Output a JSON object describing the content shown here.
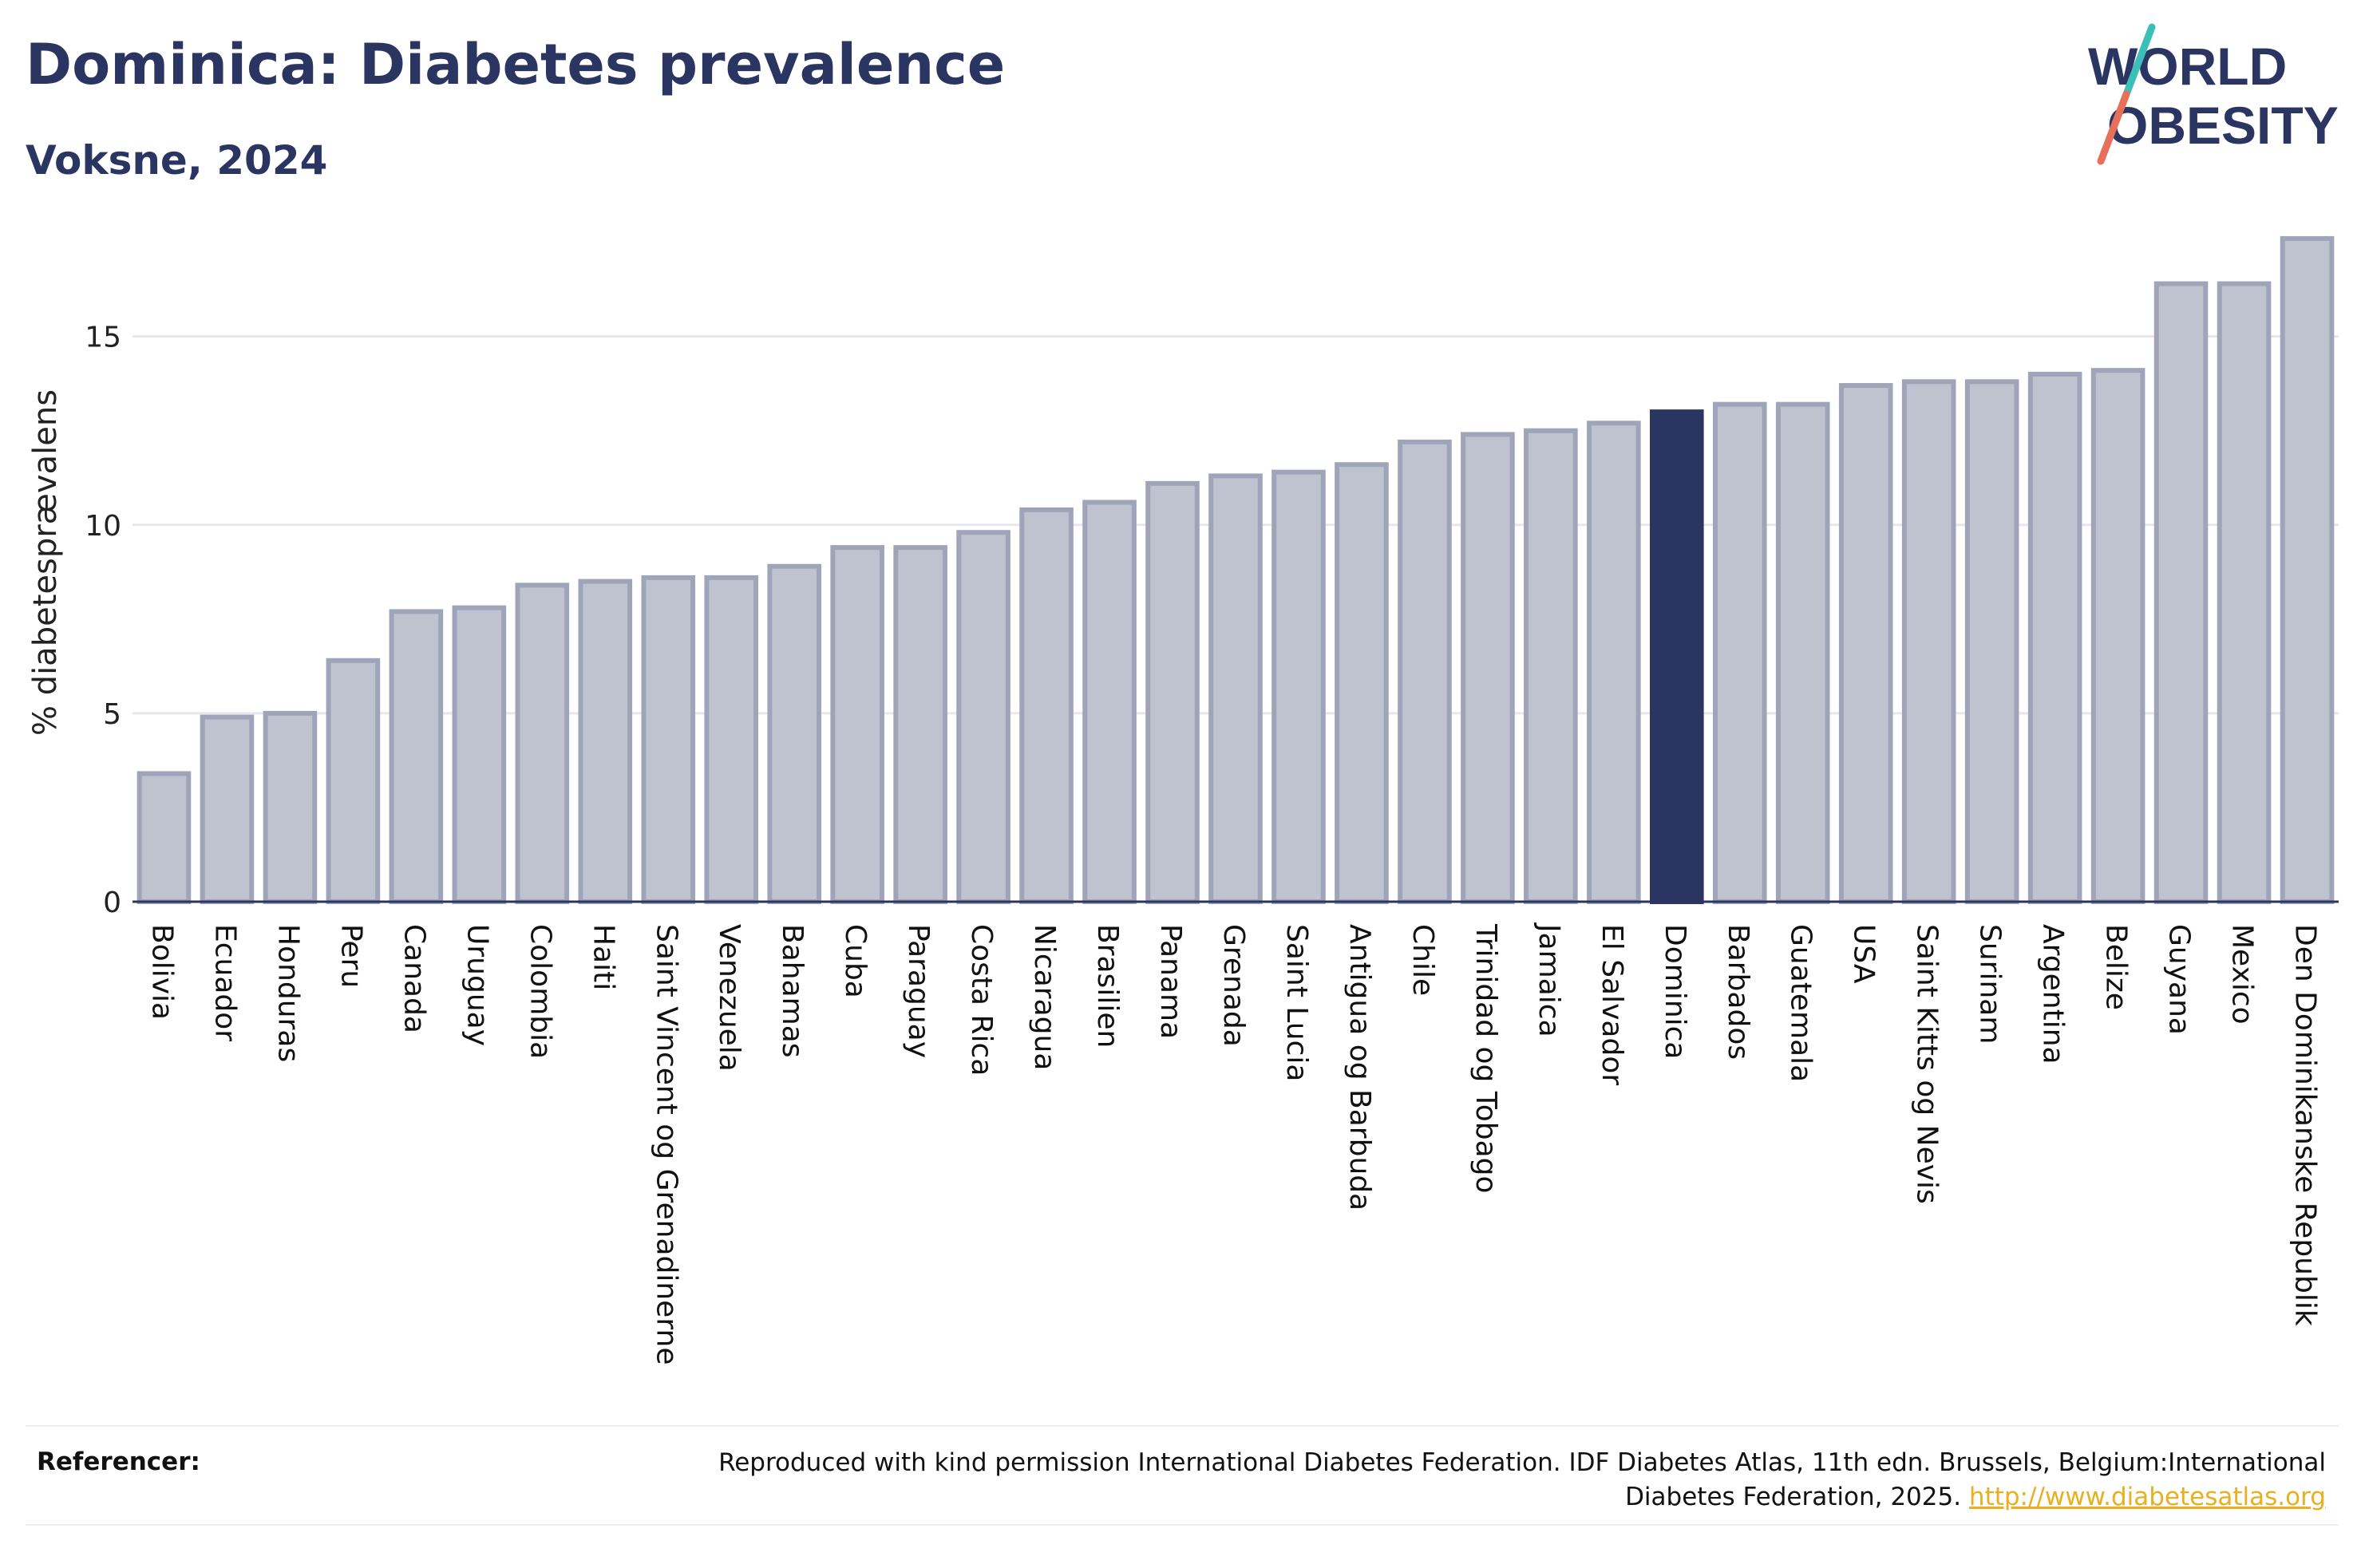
{
  "header": {
    "title": "Dominica: Diabetes prevalence",
    "subtitle": "Voksne, 2024"
  },
  "logo": {
    "line1": "WORLD",
    "line2": "OBESITY",
    "colors": {
      "text": "#2b3562",
      "slash_teal": "#3bbfb8",
      "slash_coral": "#e8705a"
    }
  },
  "chart_data": {
    "type": "bar",
    "ylabel": "% diabetesprævalens",
    "ylim": [
      0,
      18
    ],
    "yticks": [
      0,
      5,
      10,
      15
    ],
    "grid": true,
    "highlight": "Dominica",
    "colors": {
      "bar": "#bfc2cf",
      "bar_edge": "#9fa4b9",
      "highlight": "#2b3562",
      "grid": "#e6e7ec",
      "axis": "#2b3562"
    },
    "categories": [
      "Bolivia",
      "Ecuador",
      "Honduras",
      "Peru",
      "Canada",
      "Uruguay",
      "Colombia",
      "Haiti",
      "Saint Vincent og Grenadinerne",
      "Venezuela",
      "Bahamas",
      "Cuba",
      "Paraguay",
      "Costa Rica",
      "Nicaragua",
      "Brasilien",
      "Panama",
      "Grenada",
      "Saint Lucia",
      "Antigua og Barbuda",
      "Chile",
      "Trinidad og Tobago",
      "Jamaica",
      "El Salvador",
      "Dominica",
      "Barbados",
      "Guatemala",
      "USA",
      "Saint Kitts og Nevis",
      "Surinam",
      "Argentina",
      "Belize",
      "Guyana",
      "Mexico",
      "Den Dominikanske Republik"
    ],
    "values": [
      3.4,
      4.9,
      5.0,
      6.4,
      7.7,
      7.8,
      8.4,
      8.5,
      8.6,
      8.6,
      8.9,
      9.4,
      9.4,
      9.8,
      10.4,
      10.6,
      11.1,
      11.3,
      11.4,
      11.6,
      12.2,
      12.4,
      12.5,
      12.7,
      13.0,
      13.2,
      13.2,
      13.7,
      13.8,
      13.8,
      14.0,
      14.1,
      16.4,
      16.4,
      17.6
    ]
  },
  "footer": {
    "label": "Referencer:",
    "text_line1": "Reproduced with kind permission International Diabetes Federation. IDF Diabetes Atlas, 11th edn. Brussels, Belgium:International",
    "text_line2": "Diabetes Federation, 2025.",
    "link": "http://www.diabetesatlas.org"
  }
}
